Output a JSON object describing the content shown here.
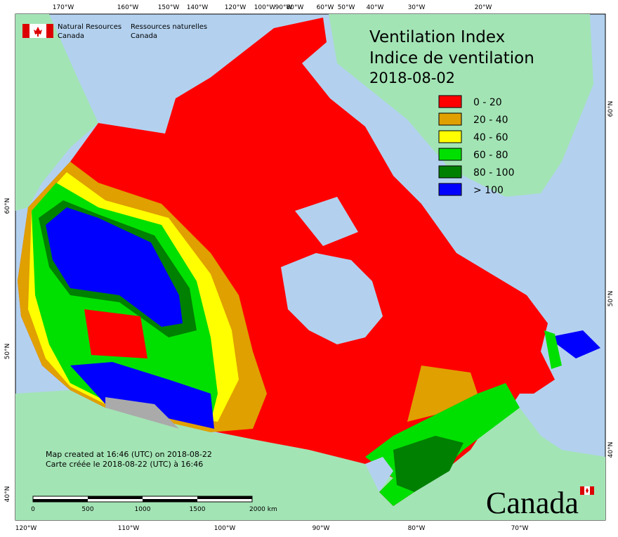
{
  "header": {
    "org_en_1": "Natural Resources",
    "org_en_2": "Canada",
    "org_fr_1": "Ressources naturelles",
    "org_fr_2": "Canada"
  },
  "title": {
    "en": "Ventilation Index",
    "fr": "Indice de ventilation",
    "date": "2018-08-02"
  },
  "legend": [
    {
      "label": "0 - 20",
      "color": "#ff0000"
    },
    {
      "label": "20 - 40",
      "color": "#e0a000"
    },
    {
      "label": "40 - 60",
      "color": "#ffff00"
    },
    {
      "label": "60 - 80",
      "color": "#00e000"
    },
    {
      "label": "80 - 100",
      "color": "#008000"
    },
    {
      "label": "> 100",
      "color": "#0000ff"
    }
  ],
  "graticule": {
    "top": [
      "170°W",
      "160°W",
      "150°W",
      "140°W",
      "120°W",
      "100°W",
      "90°W",
      "80°W",
      "60°W",
      "50°W",
      "40°W",
      "30°W",
      "20°W"
    ],
    "bottom": [
      "120°W",
      "110°W",
      "100°W",
      "90°W",
      "80°W",
      "70°W"
    ],
    "left": [
      "60°N",
      "50°N",
      "40°N"
    ],
    "right": [
      "60°N",
      "50°N",
      "40°N"
    ]
  },
  "footer": {
    "created_en": "Map created at 16:46 (UTC) on 2018-08-22",
    "created_fr": "Carte créée le 2018-08-22 (UTC) à 16:46"
  },
  "scale_bar": [
    "0",
    "500",
    "1000",
    "1500",
    "2000 km"
  ],
  "wordmark": "Canada"
}
